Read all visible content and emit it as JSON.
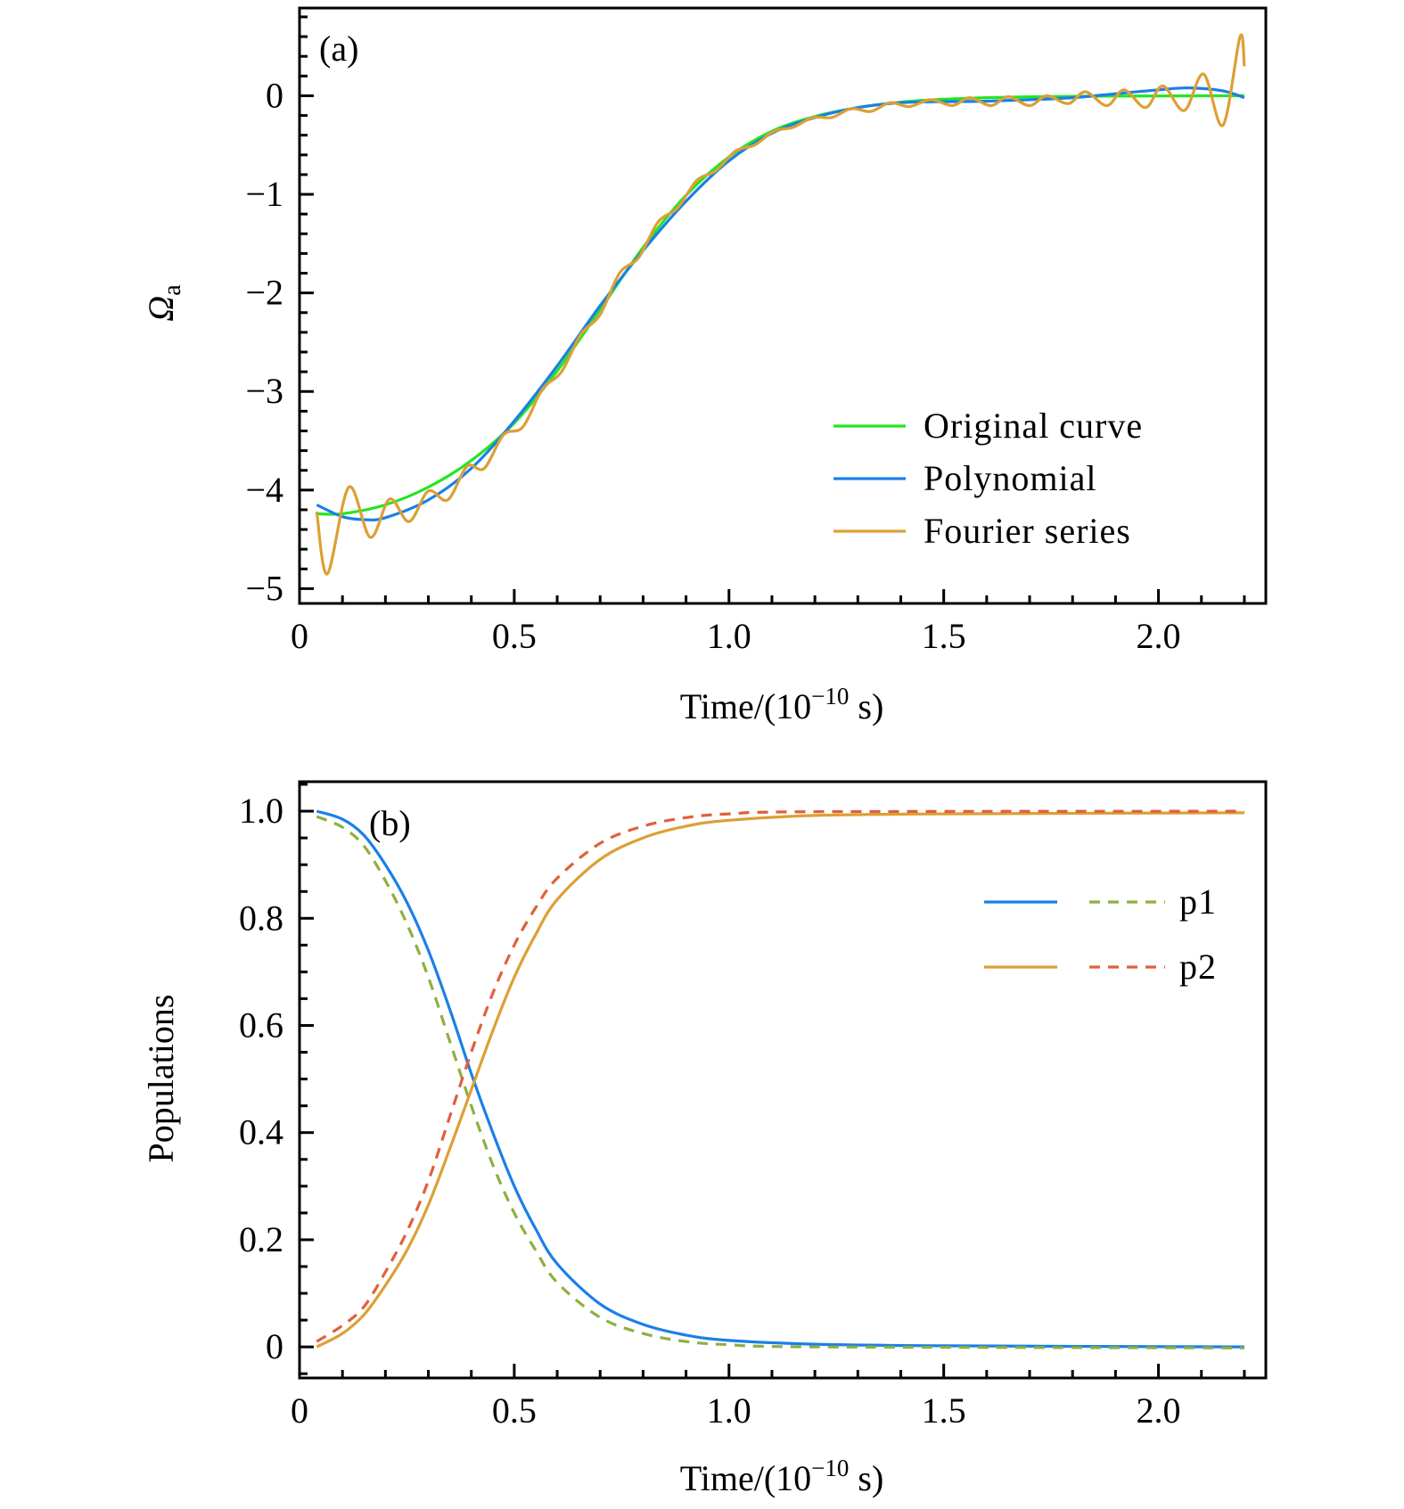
{
  "chart_data": [
    {
      "type": "line",
      "panel_label": "(a)",
      "xlabel": {
        "prefix": "Time/(10",
        "exponent": "−10",
        "suffix": " s)"
      },
      "ylabel": {
        "symbol": "Ω",
        "subscript": "a"
      },
      "xlim": [
        0,
        2.25
      ],
      "ylim": [
        -5.15,
        0.89
      ],
      "xticks": [
        {
          "v": 0,
          "label": "0"
        },
        {
          "v": 0.5,
          "label": "0.5"
        },
        {
          "v": 1.0,
          "label": "1.0"
        },
        {
          "v": 1.5,
          "label": "1.5"
        },
        {
          "v": 2.0,
          "label": "2.0"
        }
      ],
      "yticks": [
        {
          "v": 0,
          "label": "0"
        },
        {
          "v": -1,
          "label": "−1"
        },
        {
          "v": -2,
          "label": "−2"
        },
        {
          "v": -3,
          "label": "−3"
        },
        {
          "v": -4,
          "label": "−4"
        },
        {
          "v": -5,
          "label": "−5"
        }
      ],
      "legend_position": "lower-right",
      "series": [
        {
          "name": "Original curve",
          "color": "#22e622",
          "dash": false,
          "points": [
            [
              0.04,
              -4.24
            ],
            [
              0.1,
              -4.24
            ],
            [
              0.2,
              -4.15
            ],
            [
              0.3,
              -3.97
            ],
            [
              0.4,
              -3.7
            ],
            [
              0.5,
              -3.32
            ],
            [
              0.6,
              -2.79
            ],
            [
              0.7,
              -2.17
            ],
            [
              0.8,
              -1.54
            ],
            [
              0.9,
              -1.01
            ],
            [
              1.0,
              -0.62
            ],
            [
              1.1,
              -0.36
            ],
            [
              1.2,
              -0.21
            ],
            [
              1.3,
              -0.12
            ],
            [
              1.4,
              -0.065
            ],
            [
              1.5,
              -0.036
            ],
            [
              1.6,
              -0.02
            ],
            [
              1.7,
              -0.011
            ],
            [
              1.8,
              -0.006
            ],
            [
              1.9,
              -0.003
            ],
            [
              2.0,
              -0.002
            ],
            [
              2.1,
              -0.001
            ],
            [
              2.2,
              0
            ]
          ]
        },
        {
          "name": "Polynomial",
          "color": "#1a80e6",
          "dash": false,
          "points": [
            [
              0.04,
              -4.15
            ],
            [
              0.1,
              -4.27
            ],
            [
              0.15,
              -4.3
            ],
            [
              0.2,
              -4.28
            ],
            [
              0.3,
              -4.1
            ],
            [
              0.4,
              -3.78
            ],
            [
              0.5,
              -3.3
            ],
            [
              0.6,
              -2.74
            ],
            [
              0.7,
              -2.13
            ],
            [
              0.8,
              -1.57
            ],
            [
              0.9,
              -1.07
            ],
            [
              1.0,
              -0.66
            ],
            [
              1.1,
              -0.38
            ],
            [
              1.2,
              -0.22
            ],
            [
              1.3,
              -0.12
            ],
            [
              1.4,
              -0.07
            ],
            [
              1.5,
              -0.06
            ],
            [
              1.6,
              -0.055
            ],
            [
              1.7,
              -0.04
            ],
            [
              1.8,
              -0.02
            ],
            [
              1.9,
              0.02
            ],
            [
              2.0,
              0.06
            ],
            [
              2.07,
              0.08
            ],
            [
              2.15,
              0.05
            ],
            [
              2.2,
              -0.02
            ]
          ]
        },
        {
          "name": "Fourier series",
          "color": "#dd9f35",
          "dash": false,
          "points": [
            [
              0.04,
              -4.22
            ],
            [
              0.065,
              -4.85
            ],
            [
              0.115,
              -3.97
            ],
            [
              0.165,
              -4.48
            ],
            [
              0.21,
              -4.09
            ],
            [
              0.255,
              -4.32
            ],
            [
              0.3,
              -4.01
            ],
            [
              0.345,
              -4.1
            ],
            [
              0.39,
              -3.76
            ],
            [
              0.43,
              -3.78
            ],
            [
              0.475,
              -3.44
            ],
            [
              0.52,
              -3.36
            ],
            [
              0.565,
              -2.98
            ],
            [
              0.61,
              -2.8
            ],
            [
              0.655,
              -2.42
            ],
            [
              0.7,
              -2.22
            ],
            [
              0.745,
              -1.8
            ],
            [
              0.79,
              -1.64
            ],
            [
              0.835,
              -1.28
            ],
            [
              0.88,
              -1.14
            ],
            [
              0.925,
              -0.86
            ],
            [
              0.97,
              -0.76
            ],
            [
              1.015,
              -0.56
            ],
            [
              1.06,
              -0.5
            ],
            [
              1.105,
              -0.36
            ],
            [
              1.15,
              -0.32
            ],
            [
              1.195,
              -0.22
            ],
            [
              1.24,
              -0.22
            ],
            [
              1.285,
              -0.13
            ],
            [
              1.33,
              -0.16
            ],
            [
              1.375,
              -0.07
            ],
            [
              1.42,
              -0.11
            ],
            [
              1.47,
              -0.04
            ],
            [
              1.52,
              -0.1
            ],
            [
              1.56,
              -0.02
            ],
            [
              1.61,
              -0.1
            ],
            [
              1.65,
              -0.01
            ],
            [
              1.7,
              -0.1
            ],
            [
              1.74,
              0.0
            ],
            [
              1.79,
              -0.08
            ],
            [
              1.83,
              0.04
            ],
            [
              1.88,
              -0.1
            ],
            [
              1.92,
              0.06
            ],
            [
              1.97,
              -0.12
            ],
            [
              2.01,
              0.1
            ],
            [
              2.06,
              -0.15
            ],
            [
              2.105,
              0.22
            ],
            [
              2.15,
              -0.3
            ],
            [
              2.19,
              0.6
            ],
            [
              2.2,
              0.3
            ]
          ]
        }
      ]
    },
    {
      "type": "line",
      "panel_label": "(b)",
      "xlabel": {
        "prefix": "Time/(10",
        "exponent": "−10",
        "suffix": " s)"
      },
      "ylabel": "Populations",
      "xlim": [
        0,
        2.25
      ],
      "ylim": [
        -0.058,
        1.055
      ],
      "xticks": [
        {
          "v": 0,
          "label": "0"
        },
        {
          "v": 0.5,
          "label": "0.5"
        },
        {
          "v": 1.0,
          "label": "1.0"
        },
        {
          "v": 1.5,
          "label": "1.5"
        },
        {
          "v": 2.0,
          "label": "2.0"
        }
      ],
      "yticks": [
        {
          "v": 0,
          "label": "0"
        },
        {
          "v": 0.2,
          "label": "0.2"
        },
        {
          "v": 0.4,
          "label": "0.4"
        },
        {
          "v": 0.6,
          "label": "0.6"
        },
        {
          "v": 0.8,
          "label": "0.8"
        },
        {
          "v": 1.0,
          "label": "1.0"
        }
      ],
      "legend_position": "upper-right",
      "legend": [
        {
          "label": "p1",
          "solid_color": "#1a80e6",
          "dashed_color": "#8db040"
        },
        {
          "label": "p2",
          "solid_color": "#dd9f35",
          "dashed_color": "#e0603c"
        }
      ],
      "series": [
        {
          "name": "p1 solid",
          "color": "#1a80e6",
          "dash": false,
          "points": [
            [
              0.04,
              1.0
            ],
            [
              0.1,
              0.985
            ],
            [
              0.15,
              0.955
            ],
            [
              0.2,
              0.9
            ],
            [
              0.25,
              0.83
            ],
            [
              0.3,
              0.74
            ],
            [
              0.35,
              0.63
            ],
            [
              0.4,
              0.51
            ],
            [
              0.45,
              0.4
            ],
            [
              0.5,
              0.3
            ],
            [
              0.55,
              0.22
            ],
            [
              0.6,
              0.155
            ],
            [
              0.7,
              0.08
            ],
            [
              0.8,
              0.042
            ],
            [
              0.9,
              0.022
            ],
            [
              1.0,
              0.012
            ],
            [
              1.2,
              0.005
            ],
            [
              1.5,
              0.002
            ],
            [
              2.2,
              0.0
            ]
          ]
        },
        {
          "name": "p1 dashed",
          "color": "#8db040",
          "dash": true,
          "points": [
            [
              0.04,
              0.99
            ],
            [
              0.1,
              0.97
            ],
            [
              0.15,
              0.935
            ],
            [
              0.2,
              0.87
            ],
            [
              0.25,
              0.79
            ],
            [
              0.3,
              0.69
            ],
            [
              0.35,
              0.57
            ],
            [
              0.4,
              0.45
            ],
            [
              0.45,
              0.34
            ],
            [
              0.5,
              0.25
            ],
            [
              0.55,
              0.18
            ],
            [
              0.6,
              0.12
            ],
            [
              0.7,
              0.055
            ],
            [
              0.8,
              0.025
            ],
            [
              0.9,
              0.01
            ],
            [
              1.0,
              0.004
            ],
            [
              1.2,
              0.0
            ],
            [
              2.2,
              -0.002
            ]
          ]
        },
        {
          "name": "p2 solid",
          "color": "#dd9f35",
          "dash": false,
          "points": [
            [
              0.04,
              0.0
            ],
            [
              0.1,
              0.025
            ],
            [
              0.15,
              0.06
            ],
            [
              0.2,
              0.115
            ],
            [
              0.25,
              0.18
            ],
            [
              0.3,
              0.265
            ],
            [
              0.35,
              0.37
            ],
            [
              0.4,
              0.48
            ],
            [
              0.45,
              0.59
            ],
            [
              0.5,
              0.69
            ],
            [
              0.55,
              0.77
            ],
            [
              0.6,
              0.835
            ],
            [
              0.7,
              0.91
            ],
            [
              0.8,
              0.95
            ],
            [
              0.9,
              0.972
            ],
            [
              1.0,
              0.983
            ],
            [
              1.2,
              0.992
            ],
            [
              1.5,
              0.995
            ],
            [
              2.2,
              0.997
            ]
          ]
        },
        {
          "name": "p2 dashed",
          "color": "#e0603c",
          "dash": true,
          "points": [
            [
              0.04,
              0.01
            ],
            [
              0.1,
              0.04
            ],
            [
              0.15,
              0.075
            ],
            [
              0.2,
              0.14
            ],
            [
              0.25,
              0.215
            ],
            [
              0.3,
              0.31
            ],
            [
              0.35,
              0.43
            ],
            [
              0.4,
              0.55
            ],
            [
              0.45,
              0.66
            ],
            [
              0.5,
              0.75
            ],
            [
              0.55,
              0.82
            ],
            [
              0.6,
              0.875
            ],
            [
              0.7,
              0.94
            ],
            [
              0.8,
              0.972
            ],
            [
              0.9,
              0.988
            ],
            [
              1.0,
              0.995
            ],
            [
              1.2,
              0.999
            ],
            [
              2.2,
              1.0
            ]
          ]
        }
      ]
    }
  ]
}
